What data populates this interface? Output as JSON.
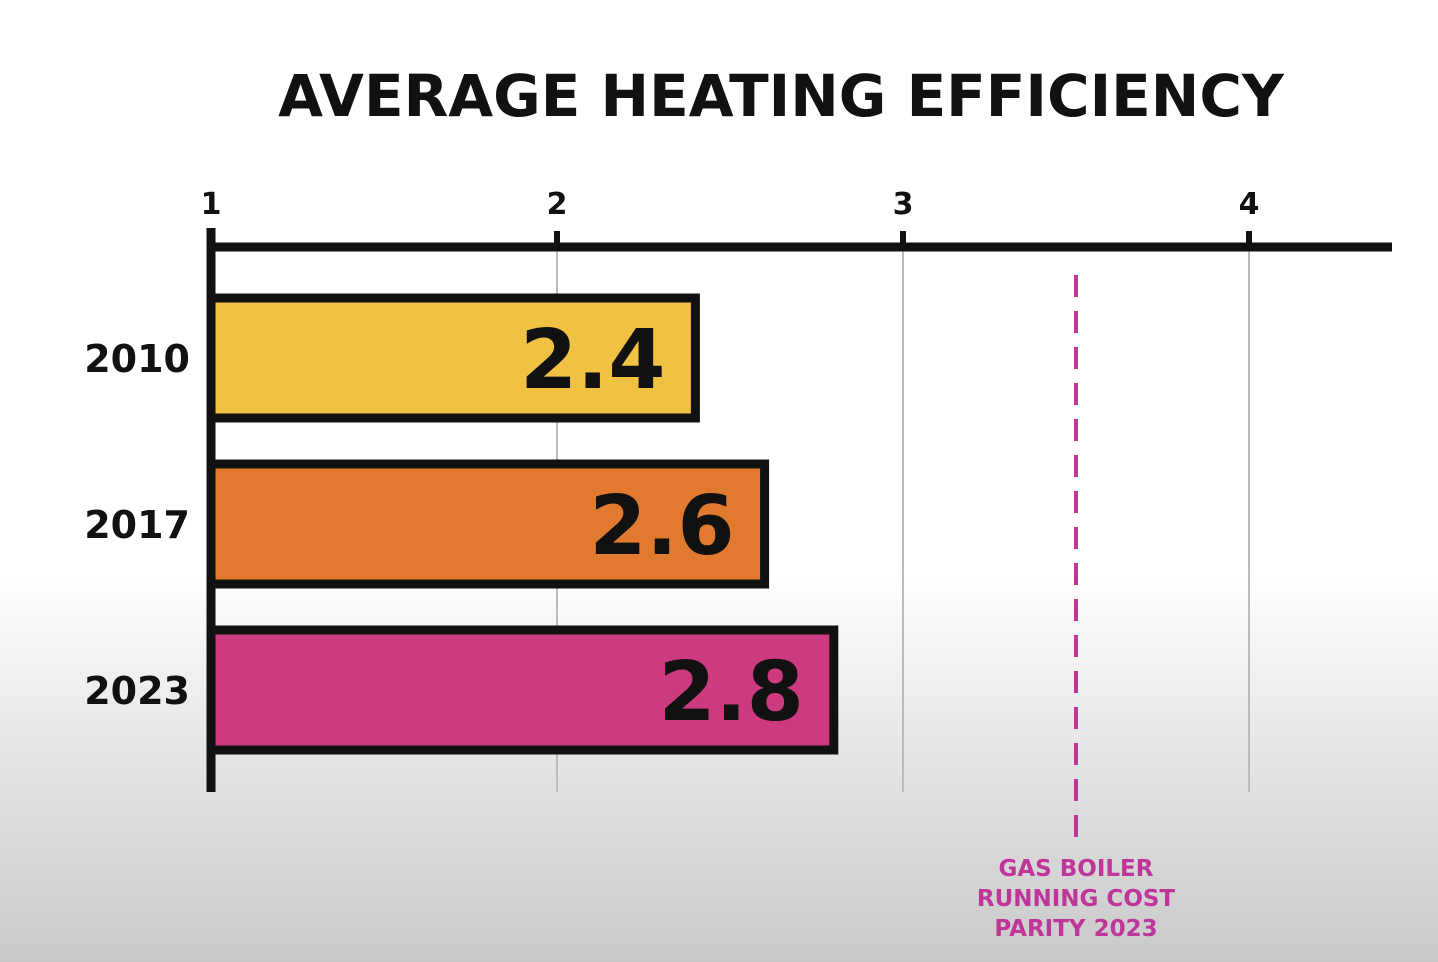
{
  "colors": {
    "axis": "#111111",
    "grid": "#bbbbbb",
    "reference": "#c0359a"
  },
  "chart_data": {
    "type": "bar",
    "orientation": "horizontal",
    "title": "AVERAGE HEATING EFFICIENCY",
    "xlim": [
      1,
      4.4
    ],
    "x_ticks": [
      1,
      2,
      3,
      4
    ],
    "x_tick_labels": [
      "1",
      "2",
      "3",
      "4"
    ],
    "axis_position": "top",
    "grid": true,
    "categories": [
      "2010",
      "2017",
      "2023"
    ],
    "values": [
      2.4,
      2.6,
      2.8
    ],
    "value_labels": [
      "2.4",
      "2.6",
      "2.8"
    ],
    "bar_colors": [
      "#f0c143",
      "#e17a2e",
      "#cc3a80"
    ],
    "reference_line": {
      "value": 3.5,
      "style": "dashed",
      "label_lines": [
        "GAS BOILER",
        "RUNNING COST",
        "PARITY 2023"
      ]
    }
  }
}
